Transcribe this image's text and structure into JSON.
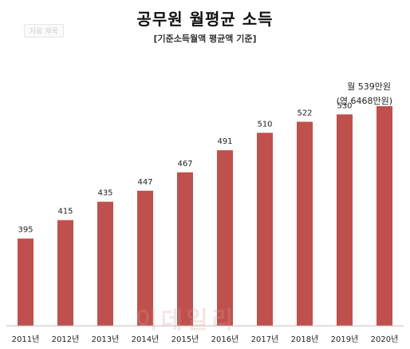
{
  "chart_data": {
    "type": "bar",
    "title": "공무원 월평균 소득",
    "subtitle": "[기준소득월액 평균액 기준]",
    "categories": [
      "2011년",
      "2012년",
      "2013년",
      "2014년",
      "2015년",
      "2016년",
      "2017년",
      "2018년",
      "2019년",
      "2020년"
    ],
    "values": [
      395,
      415,
      435,
      447,
      467,
      491,
      510,
      522,
      530,
      539
    ],
    "data_labels": [
      "395",
      "415",
      "435",
      "447",
      "467",
      "491",
      "510",
      "522",
      "530",
      ""
    ],
    "ylim": [
      300,
      545
    ],
    "grid": false,
    "legend": "none",
    "bar_color": "#c0504d",
    "annotation": {
      "line1": "월 539만원",
      "line2": "(연 6468만원)"
    }
  },
  "source_tag": "자료 제목",
  "watermark": "이데일리"
}
